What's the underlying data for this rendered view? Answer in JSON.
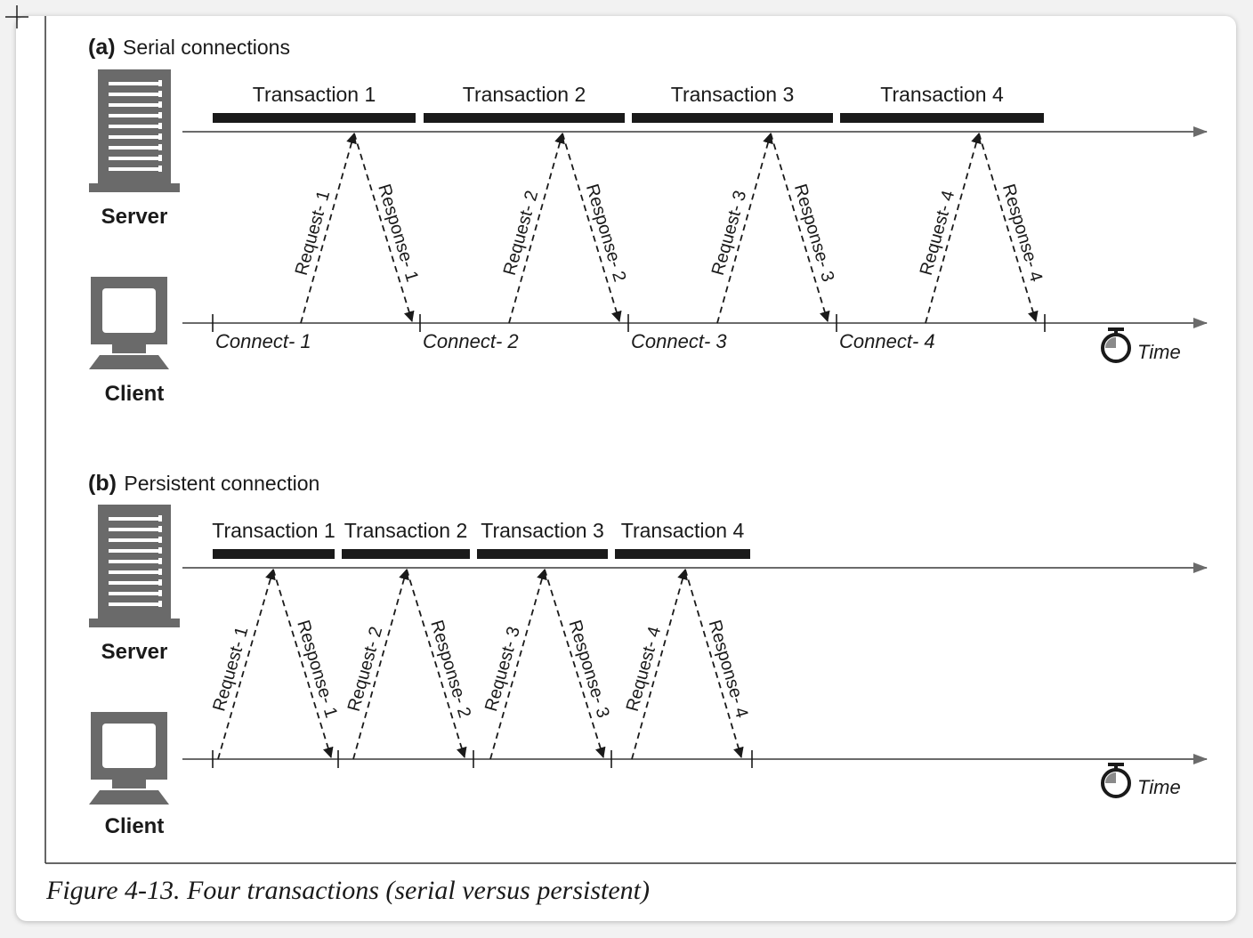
{
  "panels": [
    {
      "id": "serial",
      "label_prefix": "(a)",
      "label_text": "Serial connections",
      "server_label": "Server",
      "client_label": "Client",
      "time_label": "Time",
      "transactions": [
        "Transaction 1",
        "Transaction 2",
        "Transaction 3",
        "Transaction 4"
      ],
      "requests": [
        "Request- 1",
        "Request- 2",
        "Request- 3",
        "Request- 4"
      ],
      "responses": [
        "Response- 1",
        "Response- 2",
        "Response- 3",
        "Response- 4"
      ],
      "connects": [
        "Connect- 1",
        "Connect- 2",
        "Connect- 3",
        "Connect- 4"
      ]
    },
    {
      "id": "persistent",
      "label_prefix": "(b)",
      "label_text": "Persistent connection",
      "server_label": "Server",
      "client_label": "Client",
      "time_label": "Time",
      "transactions": [
        "Transaction 1",
        "Transaction 2",
        "Transaction 3",
        "Transaction 4"
      ],
      "requests": [
        "Request- 1",
        "Request- 2",
        "Request- 3",
        "Request- 4"
      ],
      "responses": [
        "Response- 1",
        "Response- 2",
        "Response- 3",
        "Response- 4"
      ],
      "connects": []
    }
  ],
  "caption": "Figure 4-13. Four transactions (serial versus persistent)",
  "colors": {
    "line": "#6b6b6b",
    "bar": "#1a1a1a",
    "icon": "#6a6a6a",
    "text": "#1a1a1a"
  },
  "icons": [
    "server-icon",
    "client-icon",
    "stopwatch-icon"
  ]
}
